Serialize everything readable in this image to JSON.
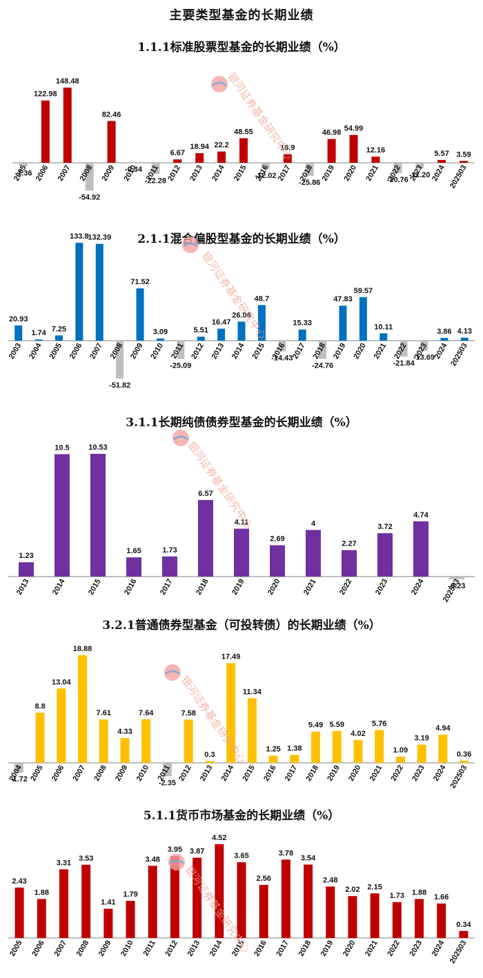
{
  "page": {
    "title": "主要类型基金的长期业绩"
  },
  "watermark": {
    "text": "银河证券基金研究中心"
  },
  "colors": {
    "negative": "#bfbfbf"
  },
  "chart_data": [
    {
      "type": "bar",
      "title": "1.1.1标准股票型基金的长期业绩（%）",
      "color": "#c00000",
      "categories": [
        "2005",
        "2006",
        "2007",
        "2008",
        "2009",
        "2010",
        "2011",
        "2012",
        "2013",
        "2014",
        "2015",
        "2016",
        "2017",
        "2018",
        "2019",
        "2020",
        "2021",
        "2022",
        "2023",
        "2024",
        "202503"
      ],
      "values": [
        -7.36,
        122.98,
        148.48,
        -54.92,
        82.46,
        -0.34,
        -22.28,
        6.67,
        18.94,
        22.2,
        48.55,
        -12.02,
        16.9,
        -25.86,
        46.98,
        54.99,
        12.16,
        -20.76,
        -11.2,
        5.57,
        3.59
      ],
      "labels": [
        "-7.36",
        "122.98",
        "148.48",
        "-54.92",
        "82.46",
        "-0.34",
        "-22.28",
        "6.67",
        "18.94",
        "22.2",
        "48.55",
        "-12.02",
        "16.9",
        "-25.86",
        "46.98",
        "54.99",
        "12.16",
        "-20.76",
        "-11.20",
        "5.57",
        "3.59"
      ],
      "xlabel": "",
      "ylabel": ""
    },
    {
      "type": "bar",
      "title": "2.1.1混合偏股型基金的长期业绩（%）",
      "color": "#0070c0",
      "categories": [
        "2003",
        "2004",
        "2005",
        "2006",
        "2007",
        "2008",
        "2009",
        "2010",
        "2011",
        "2012",
        "2013",
        "2014",
        "2015",
        "2016",
        "2017",
        "2018",
        "2019",
        "2020",
        "2021",
        "2022",
        "2023",
        "2024",
        "202503"
      ],
      "values": [
        20.93,
        1.74,
        7.25,
        133.8,
        132.39,
        -51.82,
        71.52,
        3.09,
        -25.09,
        5.51,
        16.47,
        26.06,
        48.7,
        -14.43,
        15.33,
        -24.76,
        47.83,
        59.57,
        10.11,
        -21.84,
        -13.69,
        3.86,
        4.13
      ],
      "labels": [
        "20.93",
        "1.74",
        "7.25",
        "133.8",
        "132.39",
        "-51.82",
        "71.52",
        "3.09",
        "-25.09",
        "5.51",
        "16.47",
        "26.06",
        "48.7",
        "-14.43",
        "15.33",
        "-24.76",
        "47.83",
        "59.57",
        "10.11",
        "-21.84",
        "-13.69",
        "3.86",
        "4.13"
      ],
      "xlabel": "",
      "ylabel": ""
    },
    {
      "type": "bar",
      "title": "3.1.1长期纯债债券型基金的长期业绩（%）",
      "color": "#7030a0",
      "categories": [
        "2013",
        "2014",
        "2015",
        "2016",
        "2017",
        "2018",
        "2019",
        "2020",
        "2021",
        "2022",
        "2023",
        "2024",
        "202503"
      ],
      "values": [
        1.23,
        10.5,
        10.53,
        1.65,
        1.73,
        6.57,
        4.11,
        2.69,
        4,
        2.27,
        3.72,
        4.74,
        -0.23
      ],
      "labels": [
        "1.23",
        "10.5",
        "10.53",
        "1.65",
        "1.73",
        "6.57",
        "4.11",
        "2.69",
        "4",
        "2.27",
        "3.72",
        "4.74",
        "-0.23"
      ],
      "xlabel": "",
      "ylabel": ""
    },
    {
      "type": "bar",
      "title": "3.2.1普通债券型基金（可投转债）的长期业绩（%）",
      "color": "#ffc000",
      "categories": [
        "2004",
        "2005",
        "2006",
        "2007",
        "2008",
        "2009",
        "2010",
        "2011",
        "2012",
        "2013",
        "2014",
        "2015",
        "2016",
        "2017",
        "2018",
        "2019",
        "2020",
        "2021",
        "2022",
        "2023",
        "2024",
        "202503"
      ],
      "values": [
        -1.72,
        8.8,
        13.04,
        18.88,
        7.61,
        4.33,
        7.64,
        -2.35,
        7.58,
        0.3,
        17.49,
        11.34,
        1.25,
        1.38,
        5.49,
        5.59,
        4.02,
        5.76,
        1.09,
        3.19,
        4.94,
        0.36
      ],
      "labels": [
        "-1.72",
        "8.8",
        "13.04",
        "18.88",
        "7.61",
        "4.33",
        "7.64",
        "-2.35",
        "7.58",
        "0.3",
        "17.49",
        "11.34",
        "1.25",
        "1.38",
        "5.49",
        "5.59",
        "4.02",
        "5.76",
        "1.09",
        "3.19",
        "4.94",
        "0.36"
      ],
      "xlabel": "",
      "ylabel": ""
    },
    {
      "type": "bar",
      "title": "5.1.1货币市场基金的长期业绩（%）",
      "color": "#c00000",
      "categories": [
        "2005",
        "2006",
        "2007",
        "2008",
        "2009",
        "2010",
        "2011",
        "2012",
        "2013",
        "2014",
        "2015",
        "2016",
        "2017",
        "2018",
        "2019",
        "2020",
        "2021",
        "2022",
        "2023",
        "2024",
        "202503"
      ],
      "values": [
        2.43,
        1.88,
        3.31,
        3.53,
        1.41,
        1.79,
        3.48,
        3.95,
        3.87,
        4.52,
        3.65,
        2.56,
        3.78,
        3.54,
        2.48,
        2.02,
        2.15,
        1.73,
        1.88,
        1.66,
        0.34
      ],
      "labels": [
        "2.43",
        "1.88",
        "3.31",
        "3.53",
        "1.41",
        "1.79",
        "3.48",
        "3.95",
        "3.87",
        "4.52",
        "3.65",
        "2.56",
        "3.78",
        "3.54",
        "2.48",
        "2.02",
        "2.15",
        "1.73",
        "1.88",
        "1.66",
        "0.34"
      ],
      "xlabel": "",
      "ylabel": ""
    }
  ]
}
